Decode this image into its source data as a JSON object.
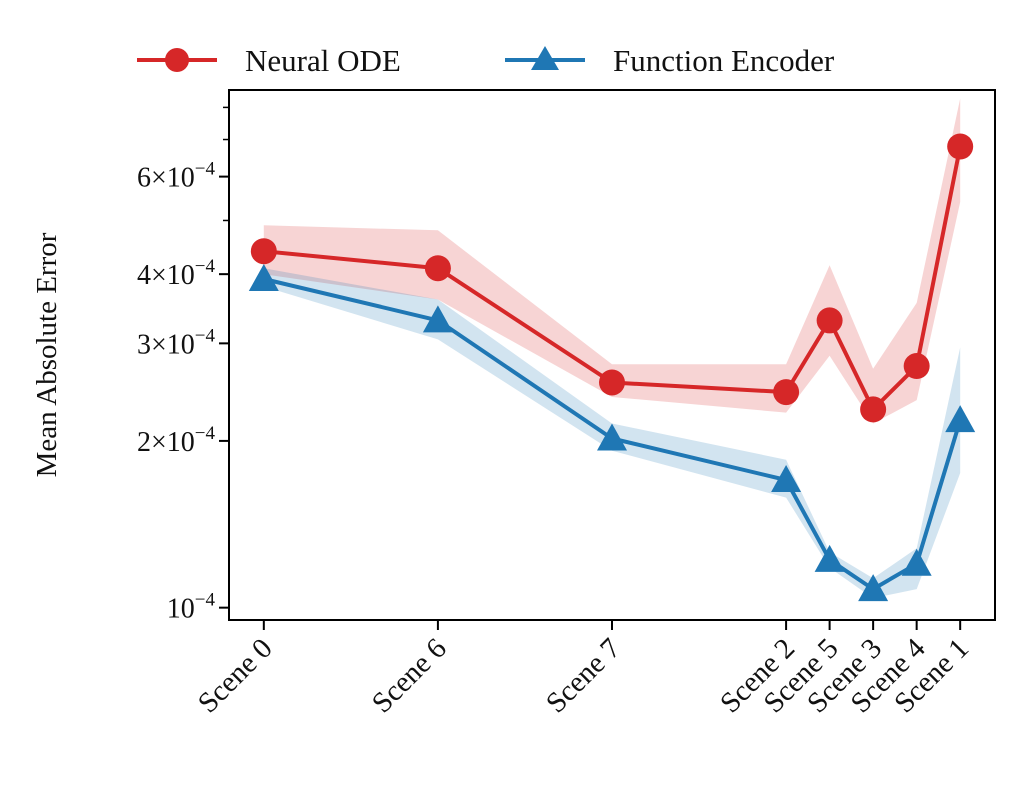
{
  "chart_data": {
    "type": "line",
    "title": "",
    "xlabel": "",
    "ylabel": "Mean Absolute Error",
    "yscale": "log",
    "ylim": [
      9.5e-05,
      0.00086
    ],
    "legend_position": "top-center-outside",
    "categories": [
      "Scene 0",
      "Scene 6",
      "Scene 7",
      "Scene 2",
      "Scene 5",
      "Scene 3",
      "Scene 4",
      "Scene 1"
    ],
    "x": [
      0,
      1,
      2,
      3,
      3.25,
      3.5,
      3.75,
      4
    ],
    "yticks": [
      {
        "value": 0.0001,
        "label": "10",
        "exp": "−4"
      },
      {
        "value": 0.0002,
        "label": "2×10",
        "exp": "−4"
      },
      {
        "value": 0.0003,
        "label": "3×10",
        "exp": "−4"
      },
      {
        "value": 0.0004,
        "label": "4×10",
        "exp": "−4"
      },
      {
        "value": 0.0006,
        "label": "6×10",
        "exp": "−4"
      }
    ],
    "minor_yticks": [
      0.0005,
      0.0007,
      0.0008
    ],
    "series": [
      {
        "name": "Neural ODE",
        "color": "#d62728",
        "marker": "circle",
        "values": [
          0.00044,
          0.00041,
          0.000255,
          0.000245,
          0.00033,
          0.000228,
          0.000273,
          0.00068
        ],
        "lower": [
          0.0004,
          0.00036,
          0.00024,
          0.000225,
          0.000285,
          0.000215,
          0.000237,
          0.00054
        ],
        "upper": [
          0.00049,
          0.00048,
          0.000275,
          0.000275,
          0.000415,
          0.00027,
          0.000355,
          0.00083
        ]
      },
      {
        "name": "Function Encoder",
        "color": "#1f77b4",
        "marker": "triangle",
        "values": [
          0.000392,
          0.00033,
          0.000202,
          0.00017,
          0.000122,
          0.000108,
          0.00012,
          0.000218
        ],
        "lower": [
          0.00038,
          0.000305,
          0.000192,
          0.000158,
          0.000118,
          0.000104,
          0.000108,
          0.000175
        ],
        "upper": [
          0.00041,
          0.00036,
          0.000215,
          0.000185,
          0.000126,
          0.000113,
          0.000128,
          0.000295
        ]
      }
    ]
  }
}
